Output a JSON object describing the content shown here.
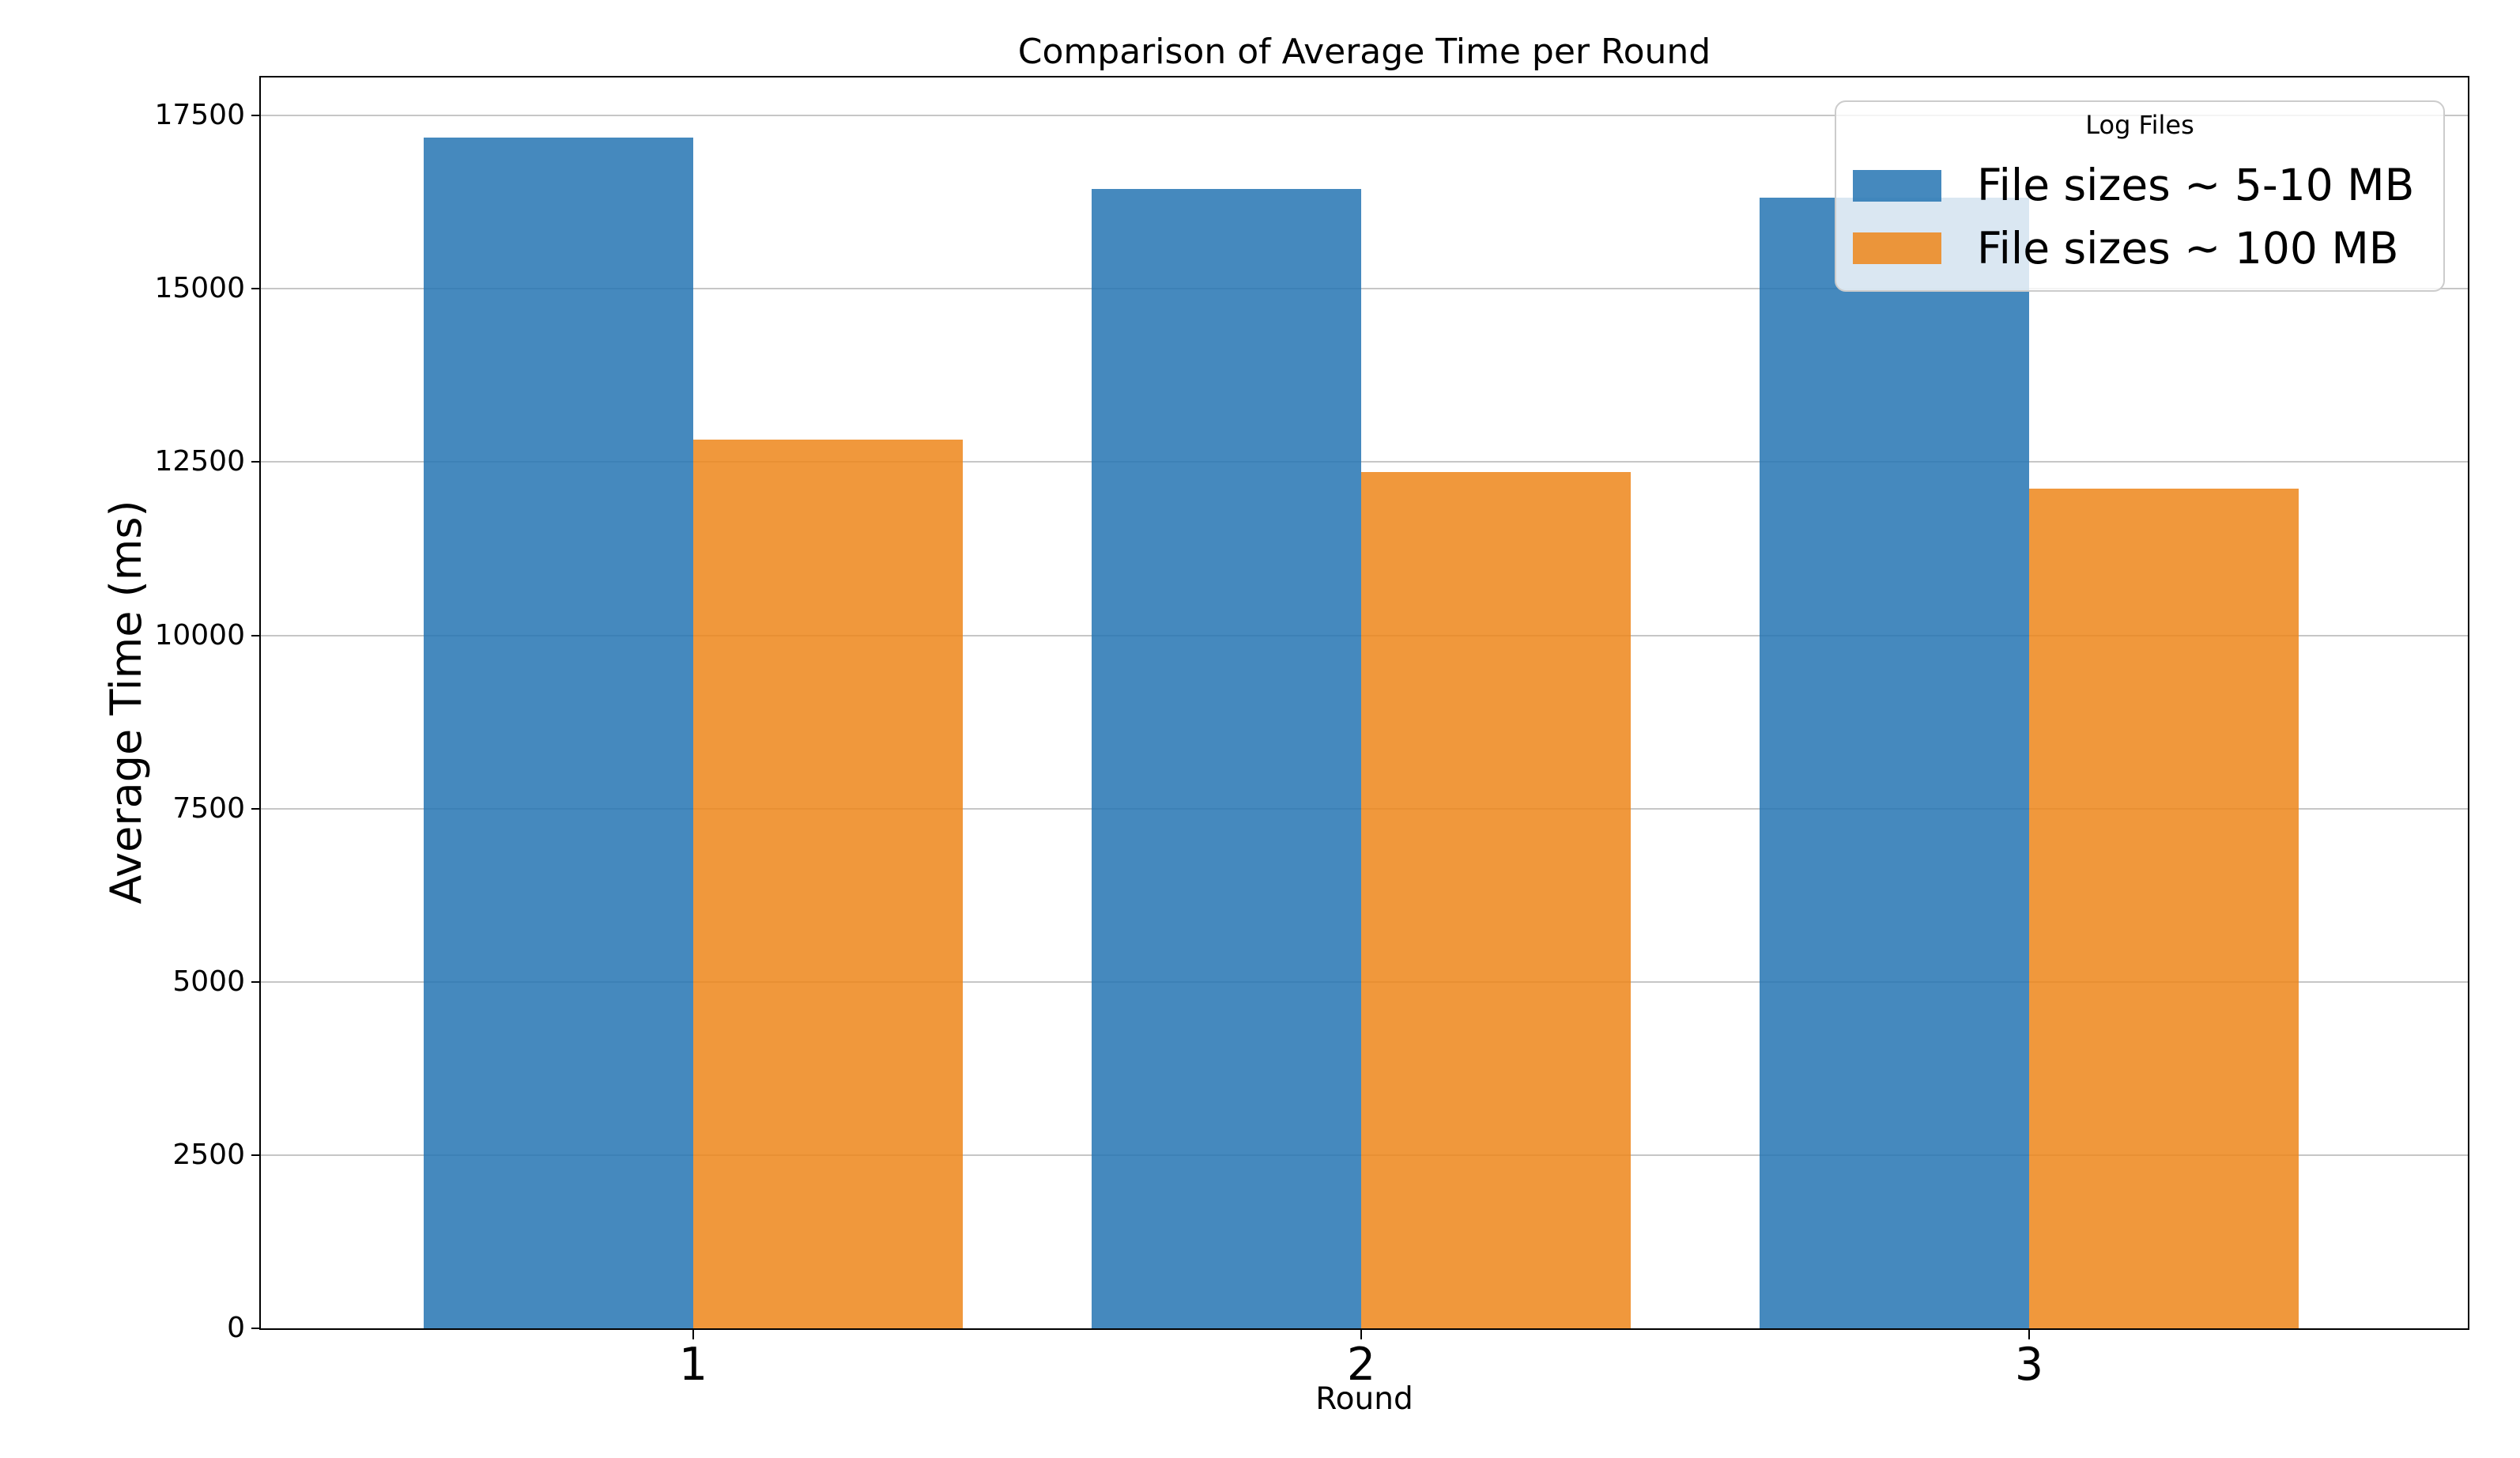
{
  "chart_data": {
    "type": "bar",
    "title": "Comparison of Average Time per Round",
    "xlabel": "Round",
    "ylabel": "Average Time (ms)",
    "categories": [
      "1",
      "2",
      "3"
    ],
    "series": [
      {
        "name": "File sizes ~ 5-10 MB",
        "color": "#4689be",
        "fill": "rgba(37,116,179,0.85)",
        "values": [
          17180,
          16440,
          16320
        ]
      },
      {
        "name": "File sizes ~ 100 MB",
        "color": "#f0983c",
        "fill": "rgba(237,134,26,0.85)",
        "values": [
          12820,
          12360,
          12120
        ]
      }
    ],
    "legend": {
      "title": "Log Files",
      "position": "upper right"
    },
    "ylim": [
      0,
      18050
    ],
    "yticks": [
      0,
      2500,
      5000,
      7500,
      10000,
      12500,
      15000,
      17500
    ],
    "grid": "horizontal",
    "grid_color": "#c6c6c6",
    "background": "#ffffff",
    "axis_color": "#000000"
  }
}
